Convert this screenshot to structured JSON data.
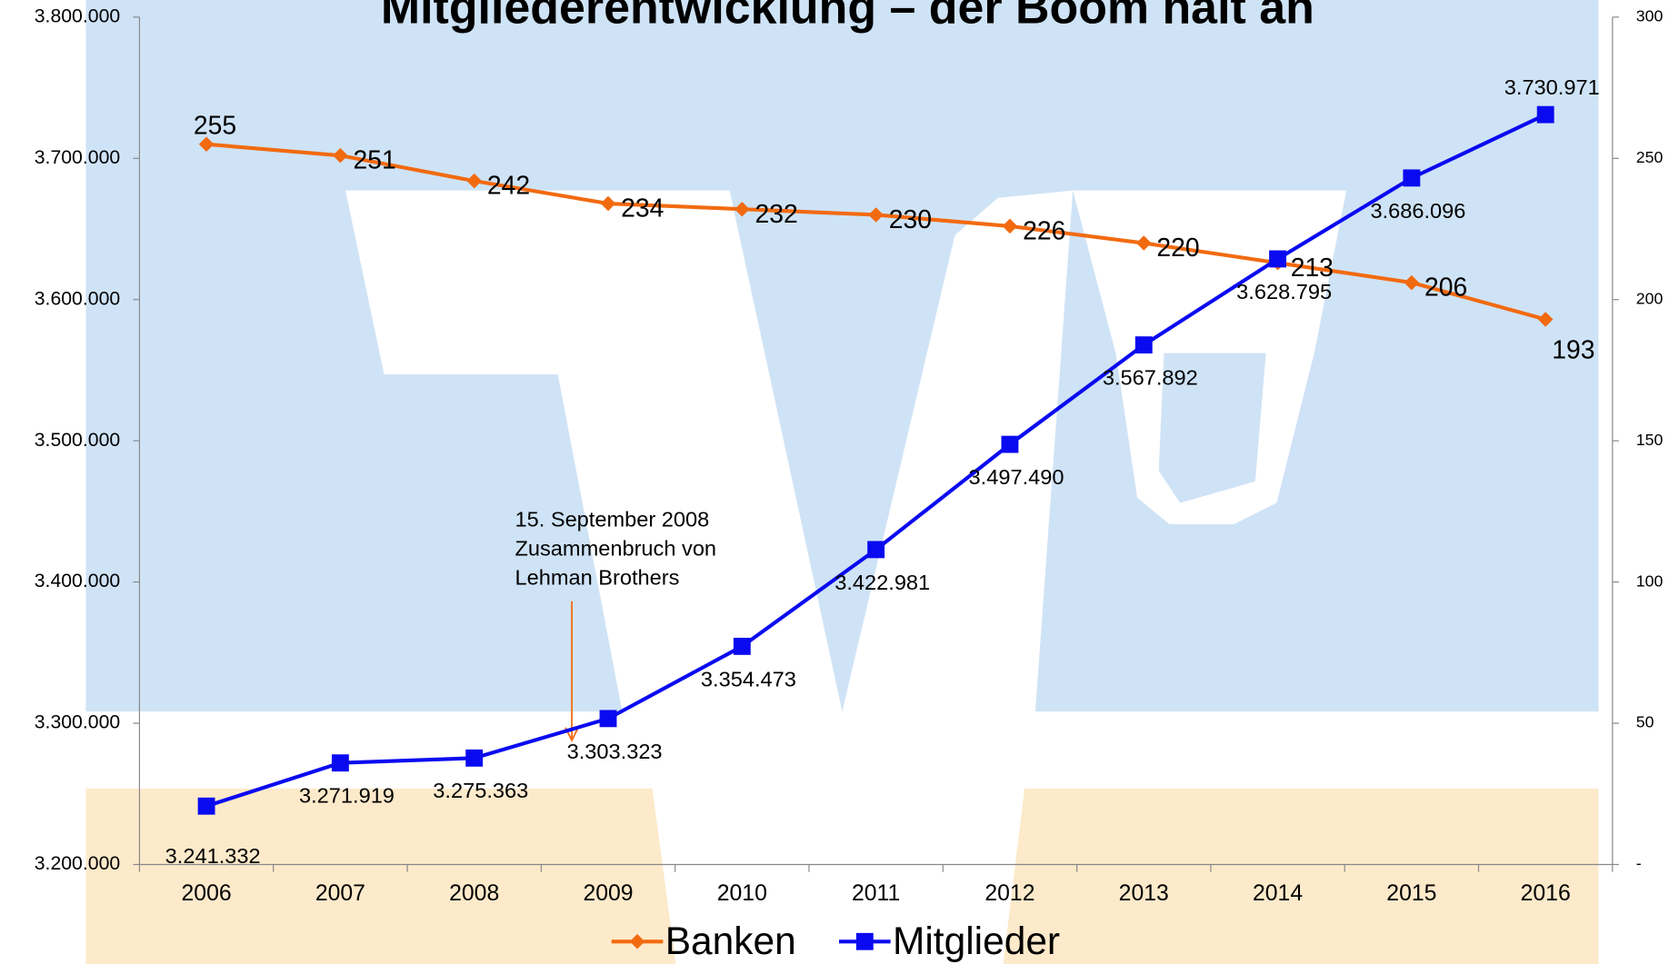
{
  "chart_data": {
    "type": "line",
    "title": "Mitgliederentwicklung – der Boom hält an",
    "categories": [
      "2006",
      "2007",
      "2008",
      "2009",
      "2010",
      "2011",
      "2012",
      "2013",
      "2014",
      "2015",
      "2016"
    ],
    "series": [
      {
        "name": "Banken",
        "color": "#f26a10",
        "axis": "y2",
        "values": [
          255,
          251,
          242,
          234,
          232,
          230,
          226,
          220,
          213,
          206,
          193
        ]
      },
      {
        "name": "Mitglieder",
        "color": "#0a0af0",
        "values": [
          3241332,
          3271919,
          3275363,
          3303323,
          3354473,
          3422981,
          3497490,
          3567892,
          3628795,
          3686096,
          3730971
        ],
        "value_labels": [
          "3.241.332",
          "3.271.919",
          "3.275.363",
          "3.303.323",
          "3.354.473",
          "3.422.981",
          "3.497.490",
          "3.567.892",
          "3.628.795",
          "3.686.096",
          "3.730.971"
        ]
      }
    ],
    "ylim": [
      3200000,
      3800000
    ],
    "yticks": [
      {
        "value": 3200000,
        "label": "3.200.000"
      },
      {
        "value": 3300000,
        "label": "3.300.000"
      },
      {
        "value": 3400000,
        "label": "3.400.000"
      },
      {
        "value": 3500000,
        "label": "3.500.000"
      },
      {
        "value": 3600000,
        "label": "3.600.000"
      },
      {
        "value": 3700000,
        "label": "3.700.000"
      },
      {
        "value": 3800000,
        "label": "3.800.000"
      }
    ],
    "y2lim": [
      0,
      300
    ],
    "y2ticks": [
      {
        "value": 0,
        "label": "-"
      },
      50,
      100,
      150,
      200,
      250,
      300
    ],
    "annotation": [
      "15. September 2008",
      "Zusammenbruch von",
      "Lehman Brothers"
    ],
    "legend": "bottom"
  }
}
